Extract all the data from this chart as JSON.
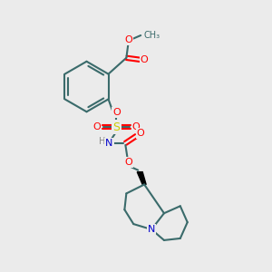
{
  "bg_color": "#ebebeb",
  "bond_color": "#3a6b6b",
  "bond_width": 1.5,
  "atom_colors": {
    "O": "#ff0000",
    "N": "#0000cc",
    "S": "#cccc00",
    "H": "#888888",
    "C": "#3a6b6b"
  },
  "figsize": [
    3.0,
    3.0
  ],
  "dpi": 100
}
